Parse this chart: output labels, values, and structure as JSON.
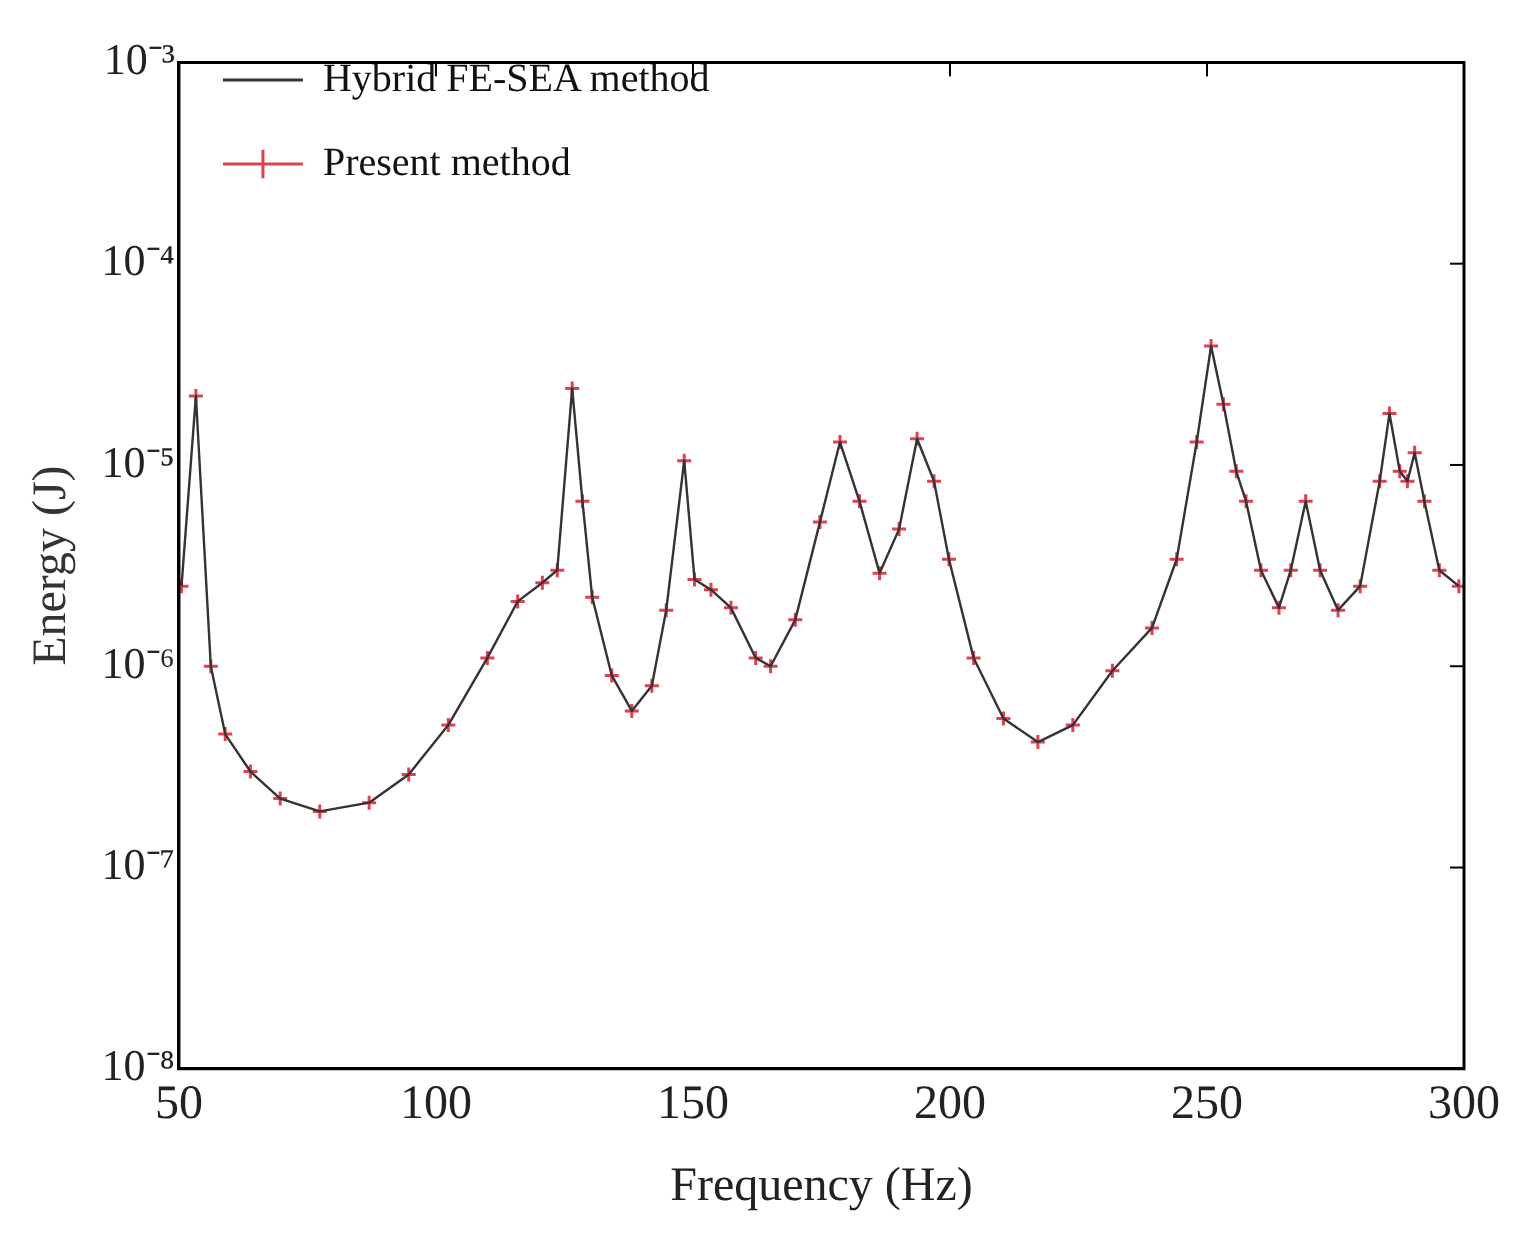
{
  "chart_data": {
    "type": "line",
    "xlabel": "Frequency (Hz)",
    "ylabel": "Energy (J)",
    "log": "y",
    "grid": false,
    "legend": "top left",
    "xlim": [
      50,
      300
    ],
    "xticks": [
      50,
      100,
      150,
      200,
      250,
      300
    ],
    "ylim": [
      1e-08,
      0.001
    ],
    "yticks": [
      {
        "value": 1e-08,
        "label": "10⁻⁸"
      },
      {
        "value": 1e-07,
        "label": "10⁻⁷"
      },
      {
        "value": 1e-06,
        "label": "10⁻⁶"
      },
      {
        "value": 1e-05,
        "label": "10⁻⁵"
      },
      {
        "value": 0.0001,
        "label": "10⁻⁴"
      },
      {
        "value": 0.001,
        "label": "10⁻³"
      }
    ],
    "x": [
      50.5,
      53.3,
      56.2,
      59,
      63.9,
      69.7,
      77.4,
      87,
      94.7,
      102.4,
      110,
      115.9,
      120.7,
      123.6,
      126.5,
      128.5,
      130.4,
      134.2,
      138.1,
      142,
      144.8,
      148.3,
      150.3,
      153.5,
      157.4,
      162.2,
      165.1,
      169.9,
      174.7,
      178.6,
      182.4,
      186.3,
      190.1,
      193.6,
      196.9,
      199.8,
      204.6,
      210.4,
      217.1,
      223.9,
      231.6,
      239.3,
      244.1,
      248,
      250.8,
      253.2,
      255.7,
      257.6,
      260.5,
      264,
      266.3,
      269.2,
      272,
      275.5,
      279.8,
      283.6,
      285.5,
      287.5,
      289,
      290.4,
      292.3,
      295.2,
      299
    ],
    "series": [
      {
        "name": "Hybrid FE-SEA method",
        "color": "#333333",
        "marker": "none",
        "line_style": "solid",
        "values": [
          2.5e-06,
          2.2e-05,
          1e-06,
          4.6e-07,
          3e-07,
          2.2e-07,
          1.9e-07,
          2.1e-07,
          2.9e-07,
          5.1e-07,
          1.1e-06,
          2.1e-06,
          2.6e-06,
          3e-06,
          2.4e-05,
          6.6e-06,
          2.2e-06,
          9e-07,
          6e-07,
          8e-07,
          1.9e-06,
          1.05e-05,
          2.7e-06,
          2.4e-06,
          1.95e-06,
          1.1e-06,
          1e-06,
          1.7e-06,
          5.2e-06,
          1.3e-05,
          6.6e-06,
          2.9e-06,
          4.8e-06,
          1.35e-05,
          8.3e-06,
          3.4e-06,
          1.1e-06,
          5.5e-07,
          4.2e-07,
          5.1e-07,
          9.5e-07,
          1.55e-06,
          3.4e-06,
          1.3e-05,
          3.9e-05,
          2e-05,
          9.3e-06,
          6.6e-06,
          3e-06,
          1.95e-06,
          3e-06,
          6.6e-06,
          3e-06,
          1.9e-06,
          2.5e-06,
          8.3e-06,
          1.8e-05,
          9.3e-06,
          8.3e-06,
          1.15e-05,
          6.6e-06,
          3e-06,
          2.5e-06
        ]
      },
      {
        "name": "Present method",
        "type": "scatter",
        "color": "#e0404f",
        "marker": "cross",
        "values": [
          2.5e-06,
          2.2e-05,
          1e-06,
          4.6e-07,
          3e-07,
          2.2e-07,
          1.9e-07,
          2.1e-07,
          2.9e-07,
          5.1e-07,
          1.1e-06,
          2.1e-06,
          2.6e-06,
          3e-06,
          2.4e-05,
          6.6e-06,
          2.2e-06,
          9e-07,
          6e-07,
          8e-07,
          1.9e-06,
          1.05e-05,
          2.7e-06,
          2.4e-06,
          1.95e-06,
          1.1e-06,
          1e-06,
          1.7e-06,
          5.2e-06,
          1.3e-05,
          6.6e-06,
          2.9e-06,
          4.8e-06,
          1.35e-05,
          8.3e-06,
          3.4e-06,
          1.1e-06,
          5.5e-07,
          4.2e-07,
          5.1e-07,
          9.5e-07,
          1.55e-06,
          3.4e-06,
          1.3e-05,
          3.9e-05,
          2e-05,
          9.3e-06,
          6.6e-06,
          3e-06,
          1.95e-06,
          3e-06,
          6.6e-06,
          3e-06,
          1.9e-06,
          2.5e-06,
          8.3e-06,
          1.8e-05,
          9.3e-06,
          8.3e-06,
          1.15e-05,
          6.6e-06,
          3e-06,
          2.5e-06
        ]
      }
    ]
  }
}
